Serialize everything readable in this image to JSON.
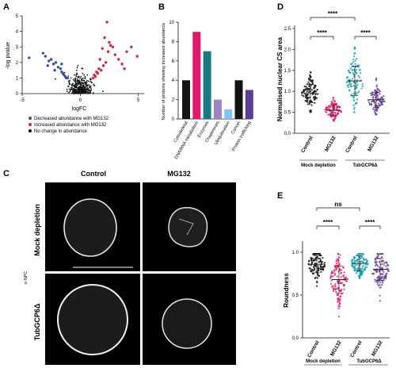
{
  "panels": {
    "A": {
      "letter": "A",
      "xlabel": "logFC",
      "ylabel": "-log pvalue",
      "xticks": [
        "-5",
        "0",
        "5"
      ],
      "yticks": [
        "0",
        "1",
        "2",
        "3",
        "4",
        "5"
      ],
      "legend": [
        {
          "label": "Decreased abundance with MG132",
          "color": "#3b4ea0"
        },
        {
          "label": "Increased abundance with MG132",
          "color": "#d4243b"
        },
        {
          "label": "No change in abundance",
          "color": "#111111"
        }
      ]
    },
    "B": {
      "letter": "B",
      "ylabel": "Number of proteins showing increased abundance",
      "yticks": [
        "0",
        "2",
        "4",
        "6",
        "8",
        "10"
      ]
    },
    "C": {
      "letter": "C",
      "col_labels": [
        "Control",
        "MG132"
      ],
      "row_labels": [
        "Mock depletion",
        "TubGCP6Δ"
      ],
      "side_label": "α-NPC"
    },
    "D": {
      "letter": "D",
      "ylabel": "Normalised nuclear CS area",
      "yticks": [
        "0.0",
        "0.5",
        "1.0",
        "1.5",
        "2.0",
        "2.5"
      ],
      "xticks": [
        "Control",
        "MG132",
        "Control",
        "MG132"
      ],
      "groups": [
        "Mock depletion",
        "TubGCP6Δ"
      ],
      "sig": [
        "****",
        "****",
        "****"
      ]
    },
    "E": {
      "letter": "E",
      "ylabel": "Roundness",
      "yticks": [
        "0.0",
        "0.5",
        "1.0"
      ],
      "xticks": [
        "Control",
        "MG132",
        "Control",
        "MG132"
      ],
      "groups": [
        "Mock depletion",
        "TubGCP6Δ"
      ],
      "sig": [
        "ns",
        "****",
        "****"
      ]
    }
  },
  "chart_data": [
    {
      "type": "scatter",
      "panel": "A",
      "xlabel": "logFC",
      "ylabel": "-log pvalue",
      "xlim": [
        -5,
        5.5
      ],
      "ylim": [
        0,
        5
      ],
      "series": [
        {
          "name": "Decreased abundance with MG132",
          "color": "#3b4ea0",
          "x": [
            -4.4,
            -3.2,
            -3.0,
            -2.7,
            -2.5,
            -2.3,
            -2.1,
            -1.9,
            -1.7,
            -1.6,
            -1.5,
            -1.4,
            -1.3,
            -1.2,
            -1.1,
            -1.6,
            -2.2,
            -2.8
          ],
          "y": [
            2.3,
            2.6,
            2.4,
            2.1,
            2.2,
            1.9,
            2.0,
            1.7,
            1.6,
            1.4,
            1.3,
            1.2,
            1.1,
            1.0,
            1.0,
            1.9,
            1.5,
            1.8
          ]
        },
        {
          "name": "Increased abundance with MG132",
          "color": "#d4243b",
          "x": [
            1.1,
            1.2,
            1.3,
            1.4,
            1.5,
            1.6,
            1.8,
            2.0,
            2.2,
            2.4,
            2.6,
            2.8,
            3.0,
            3.3,
            3.6,
            4.0,
            4.4,
            4.9,
            2.1,
            2.5,
            1.7,
            3.8,
            2.3,
            1.9
          ],
          "y": [
            1.0,
            1.2,
            1.1,
            1.4,
            1.3,
            1.6,
            1.5,
            1.8,
            2.0,
            2.7,
            3.1,
            3.0,
            2.5,
            2.2,
            1.9,
            2.7,
            3.0,
            2.4,
            3.6,
            3.3,
            2.2,
            1.6,
            4.6,
            2.9
          ]
        },
        {
          "name": "No change in abundance",
          "color": "#111111",
          "x": [
            -1.0,
            -0.9,
            -0.8,
            -0.7,
            -0.6,
            -0.5,
            -0.4,
            -0.3,
            -0.2,
            -0.1,
            0.0,
            0.1,
            0.2,
            0.3,
            0.4,
            0.5,
            0.6,
            0.7,
            0.8,
            0.9,
            1.0,
            -0.6,
            -0.3,
            0.0,
            0.3,
            0.6,
            -0.2,
            0.2,
            0.0,
            -0.8,
            0.8,
            0.4,
            -0.4,
            0.1,
            -0.1,
            0.0,
            0.5,
            -0.5,
            0.7,
            -0.7
          ],
          "y": [
            0.8,
            0.6,
            1.0,
            0.4,
            0.9,
            1.2,
            0.7,
            1.5,
            0.3,
            1.1,
            0.2,
            0.9,
            1.3,
            0.5,
            1.0,
            0.6,
            1.2,
            0.8,
            0.4,
            0.9,
            0.7,
            0.2,
            0.4,
            0.6,
            0.3,
            0.1,
            1.8,
            1.6,
            1.0,
            0.3,
            0.2,
            0.1,
            0.2,
            0.05,
            0.1,
            0.35,
            0.45,
            0.5,
            0.15,
            0.6
          ]
        }
      ]
    },
    {
      "type": "bar",
      "panel": "B",
      "categories": [
        "Cytoskeletal",
        "DNA/RNA metabolism",
        "Enzymes",
        "Chaperones",
        "Ubiquitination",
        "Cancer",
        "Protein trafficking"
      ],
      "values": [
        4,
        9,
        7,
        2,
        1,
        4,
        3
      ],
      "colors": [
        "#141414",
        "#e0186c",
        "#1a7a84",
        "#9b84bf",
        "#7fc6ec",
        "#141414",
        "#5a3e93"
      ],
      "ylabel": "Number of proteins showing increased abundance",
      "ylim": [
        0,
        10
      ]
    },
    {
      "type": "scatter",
      "panel": "D",
      "categories": [
        "Control",
        "MG132",
        "Control",
        "MG132"
      ],
      "groups": [
        "Mock depletion",
        "TubGCP6Δ"
      ],
      "colors": [
        "#111111",
        "#e0186c",
        "#12a0b0",
        "#6a3f9e"
      ],
      "means": [
        0.95,
        0.55,
        1.25,
        0.8
      ],
      "sd": [
        0.22,
        0.13,
        0.35,
        0.18
      ],
      "ranges": [
        [
          0.5,
          1.75
        ],
        [
          0.3,
          0.9
        ],
        [
          0.5,
          2.05
        ],
        [
          0.45,
          1.6
        ]
      ],
      "ylabel": "Normalised nuclear CS area",
      "ylim": [
        0,
        2.5
      ]
    },
    {
      "type": "scatter",
      "panel": "E",
      "categories": [
        "Control",
        "MG132",
        "Control",
        "MG132"
      ],
      "groups": [
        "Mock depletion",
        "TubGCP6Δ"
      ],
      "colors": [
        "#111111",
        "#e0186c",
        "#12a0b0",
        "#6a3f9e"
      ],
      "means": [
        0.86,
        0.68,
        0.87,
        0.8
      ],
      "sd": [
        0.1,
        0.16,
        0.09,
        0.13
      ],
      "ranges": [
        [
          0.4,
          0.98
        ],
        [
          0.2,
          0.98
        ],
        [
          0.45,
          0.98
        ],
        [
          0.3,
          0.98
        ]
      ],
      "ylabel": "Roundness",
      "ylim": [
        0,
        1
      ]
    }
  ]
}
